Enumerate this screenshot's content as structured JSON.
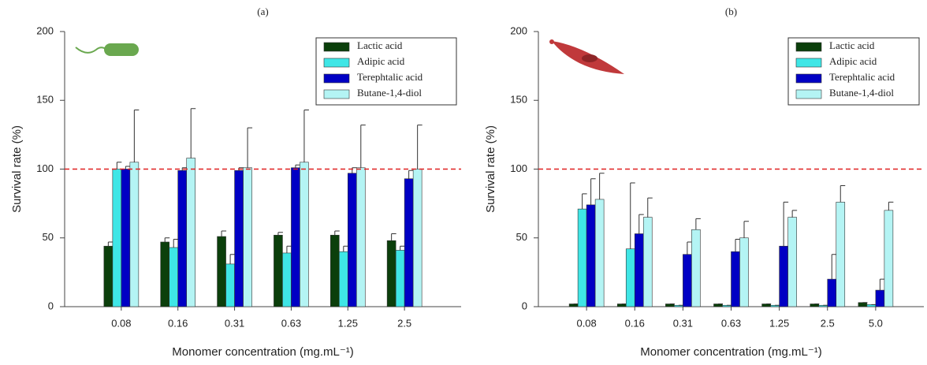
{
  "chart_data": [
    {
      "type": "bar",
      "title": "(a)",
      "x_label": "Monomer concentration (mg.mL⁻¹)",
      "y_label": "Survival rate (%)",
      "categories": [
        "0.08",
        "0.16",
        "0.31",
        "0.63",
        "1.25",
        "2.5"
      ],
      "ylim": [
        0,
        200
      ],
      "yticks": [
        0,
        50,
        100,
        150,
        200
      ],
      "reference_line": 100,
      "reference_color": "#e02020",
      "legend": "upper right",
      "series": [
        {
          "name": "Lactic acid",
          "color": "#0b3f0b",
          "values": [
            44,
            47,
            51,
            52,
            52,
            48
          ],
          "errors": [
            3,
            3,
            4,
            2,
            3,
            5
          ]
        },
        {
          "name": "Adipic acid",
          "color": "#3fe6e6",
          "values": [
            100,
            43,
            31,
            39,
            40,
            41
          ],
          "errors": [
            5,
            6,
            7,
            5,
            4,
            3
          ]
        },
        {
          "name": "Terephtalic acid",
          "color": "#0000c4",
          "values": [
            100,
            99,
            99,
            101,
            97,
            93
          ],
          "errors": [
            2,
            2,
            2,
            2,
            4,
            6
          ]
        },
        {
          "name": "Butane-1,4-diol",
          "color": "#b4f4f4",
          "values": [
            105,
            108,
            101,
            105,
            101,
            100
          ],
          "errors": [
            38,
            36,
            29,
            38,
            31,
            32
          ]
        }
      ]
    },
    {
      "type": "bar",
      "title": "(b)",
      "x_label": "Monomer concentration (mg.mL⁻¹)",
      "y_label": "Survival rate (%)",
      "categories": [
        "0.08",
        "0.16",
        "0.31",
        "0.63",
        "1.25",
        "2.5",
        "5.0"
      ],
      "ylim": [
        0,
        200
      ],
      "yticks": [
        0,
        50,
        100,
        150,
        200
      ],
      "reference_line": 100,
      "reference_color": "#e02020",
      "legend": "upper right",
      "series": [
        {
          "name": "Lactic acid",
          "color": "#0b3f0b",
          "values": [
            2,
            2,
            2,
            2,
            2,
            2,
            3
          ],
          "errors": [
            0,
            0,
            0,
            0,
            0,
            0,
            0
          ]
        },
        {
          "name": "Adipic acid",
          "color": "#3fe6e6",
          "values": [
            71,
            42,
            1,
            1,
            1,
            1,
            1.5
          ],
          "errors": [
            11,
            48,
            0,
            0,
            0,
            0,
            0
          ]
        },
        {
          "name": "Terephtalic acid",
          "color": "#0000c4",
          "values": [
            74,
            53,
            38,
            40,
            44,
            20,
            12
          ],
          "errors": [
            19,
            14,
            9,
            9,
            32,
            18,
            8
          ]
        },
        {
          "name": "Butane-1,4-diol",
          "color": "#b4f4f4",
          "values": [
            78,
            65,
            56,
            50,
            65,
            76,
            70
          ],
          "errors": [
            19,
            14,
            8,
            12,
            5,
            12,
            6
          ]
        }
      ]
    }
  ]
}
